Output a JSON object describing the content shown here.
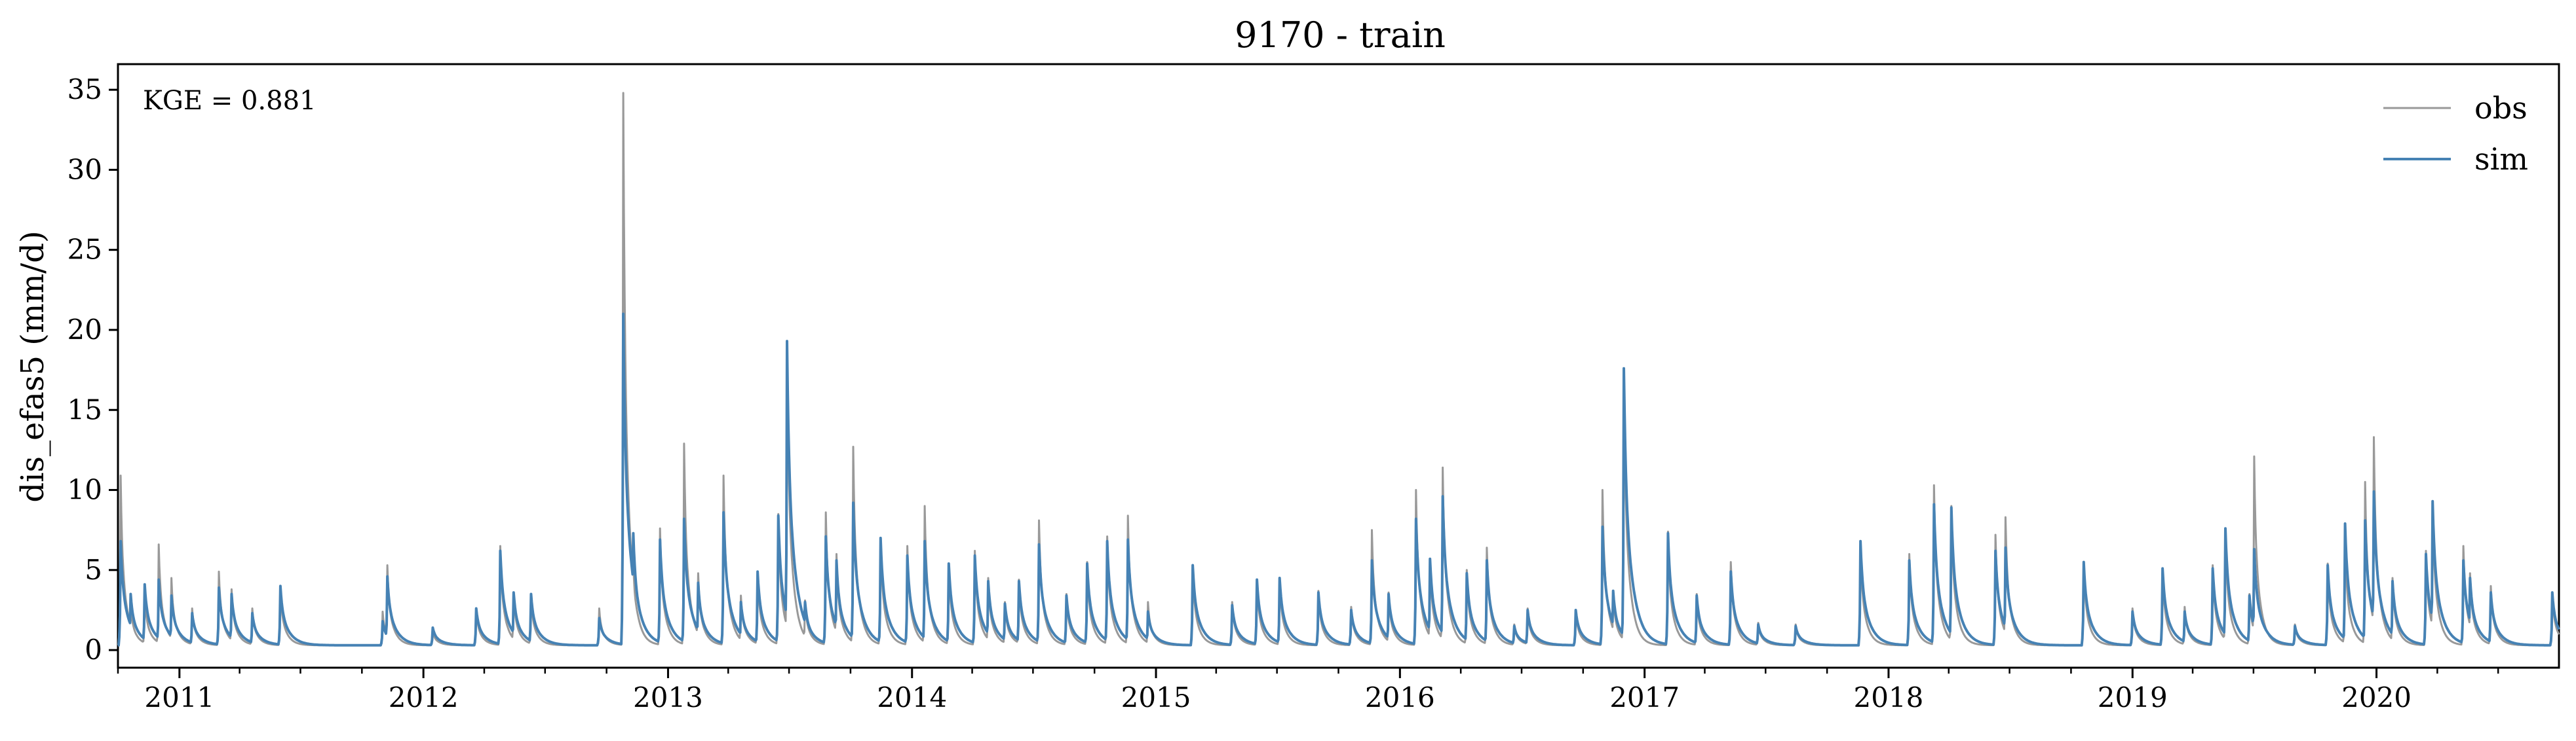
{
  "chart_data": {
    "type": "line",
    "title": "9170 - train",
    "xlabel": "",
    "ylabel": "dis_efas5 (mm/d)",
    "annotation": "KGE = 0.881",
    "legend_position": "top-right",
    "grid": false,
    "xlim": [
      "2010-10-01",
      "2020-09-30"
    ],
    "ylim": [
      -1.1,
      36.6
    ],
    "yticks": [
      0,
      5,
      10,
      15,
      20,
      25,
      30,
      35
    ],
    "xticks": [
      {
        "date": "2011-01-01",
        "label": "2011"
      },
      {
        "date": "2012-01-01",
        "label": "2012"
      },
      {
        "date": "2013-01-01",
        "label": "2013"
      },
      {
        "date": "2014-01-01",
        "label": "2014"
      },
      {
        "date": "2015-01-01",
        "label": "2015"
      },
      {
        "date": "2016-01-01",
        "label": "2016"
      },
      {
        "date": "2017-01-01",
        "label": "2017"
      },
      {
        "date": "2018-01-01",
        "label": "2018"
      },
      {
        "date": "2019-01-01",
        "label": "2019"
      },
      {
        "date": "2020-01-01",
        "label": "2020"
      }
    ],
    "base_flow": 0.3,
    "series": [
      {
        "name": "obs",
        "color": "#999999",
        "peaks": [
          [
            "2010-10-05",
            10.9
          ],
          [
            "2010-10-20",
            3.0
          ],
          [
            "2010-11-10",
            3.5
          ],
          [
            "2010-12-01",
            6.6
          ],
          [
            "2010-12-20",
            4.5
          ],
          [
            "2011-01-20",
            2.6
          ],
          [
            "2011-03-01",
            4.9
          ],
          [
            "2011-03-20",
            3.8
          ],
          [
            "2011-04-20",
            2.6
          ],
          [
            "2011-06-01",
            3.9
          ],
          [
            "2011-11-01",
            2.4
          ],
          [
            "2011-11-08",
            5.3
          ],
          [
            "2012-01-15",
            1.2
          ],
          [
            "2012-03-20",
            2.6
          ],
          [
            "2012-04-25",
            6.5
          ],
          [
            "2012-05-15",
            3.6
          ],
          [
            "2012-06-10",
            3.4
          ],
          [
            "2012-09-20",
            2.6
          ],
          [
            "2012-10-26",
            34.8
          ],
          [
            "2012-11-10",
            5.6
          ],
          [
            "2012-12-20",
            7.6
          ],
          [
            "2013-01-25",
            12.9
          ],
          [
            "2013-02-15",
            4.8
          ],
          [
            "2013-03-25",
            10.9
          ],
          [
            "2013-04-20",
            3.4
          ],
          [
            "2013-05-15",
            4.9
          ],
          [
            "2013-06-15",
            8.5
          ],
          [
            "2013-06-28",
            19.2
          ],
          [
            "2013-07-25",
            3.1
          ],
          [
            "2013-08-25",
            8.6
          ],
          [
            "2013-09-10",
            6.0
          ],
          [
            "2013-10-05",
            12.7
          ],
          [
            "2013-11-15",
            7.0
          ],
          [
            "2013-12-25",
            6.5
          ],
          [
            "2014-01-20",
            9.0
          ],
          [
            "2014-02-25",
            5.4
          ],
          [
            "2014-04-05",
            6.2
          ],
          [
            "2014-04-25",
            4.5
          ],
          [
            "2014-05-20",
            3.0
          ],
          [
            "2014-06-10",
            4.4
          ],
          [
            "2014-07-10",
            8.1
          ],
          [
            "2014-08-20",
            3.5
          ],
          [
            "2014-09-20",
            5.5
          ],
          [
            "2014-10-20",
            7.1
          ],
          [
            "2014-11-20",
            8.4
          ],
          [
            "2014-12-20",
            3.0
          ],
          [
            "2015-02-25",
            5.2
          ],
          [
            "2015-04-25",
            3.0
          ],
          [
            "2015-06-01",
            4.4
          ],
          [
            "2015-07-05",
            4.5
          ],
          [
            "2015-09-01",
            3.7
          ],
          [
            "2015-10-20",
            2.7
          ],
          [
            "2015-11-20",
            7.5
          ],
          [
            "2015-12-15",
            3.6
          ],
          [
            "2016-01-25",
            10.0
          ],
          [
            "2016-02-15",
            5.7
          ],
          [
            "2016-03-05",
            11.4
          ],
          [
            "2016-04-10",
            5.0
          ],
          [
            "2016-05-10",
            6.4
          ],
          [
            "2016-06-20",
            1.6
          ],
          [
            "2016-07-10",
            2.6
          ],
          [
            "2016-09-20",
            2.5
          ],
          [
            "2016-10-30",
            10.0
          ],
          [
            "2016-11-15",
            3.7
          ],
          [
            "2016-12-01",
            17.5
          ],
          [
            "2017-02-05",
            7.4
          ],
          [
            "2017-03-20",
            3.5
          ],
          [
            "2017-05-10",
            5.5
          ],
          [
            "2017-06-20",
            1.7
          ],
          [
            "2017-08-15",
            1.6
          ],
          [
            "2017-11-20",
            6.7
          ],
          [
            "2018-02-01",
            6.0
          ],
          [
            "2018-03-10",
            10.3
          ],
          [
            "2018-04-05",
            9.0
          ],
          [
            "2018-06-10",
            7.2
          ],
          [
            "2018-06-25",
            8.3
          ],
          [
            "2018-10-20",
            5.5
          ],
          [
            "2019-01-01",
            2.6
          ],
          [
            "2019-02-15",
            5.0
          ],
          [
            "2019-03-20",
            2.7
          ],
          [
            "2019-05-01",
            5.3
          ],
          [
            "2019-05-20",
            7.5
          ],
          [
            "2019-06-25",
            3.5
          ],
          [
            "2019-07-02",
            12.1
          ],
          [
            "2019-09-01",
            1.6
          ],
          [
            "2019-10-20",
            5.4
          ],
          [
            "2019-11-15",
            7.0
          ],
          [
            "2019-12-15",
            10.5
          ],
          [
            "2019-12-28",
            13.3
          ],
          [
            "2020-01-25",
            4.5
          ],
          [
            "2020-03-15",
            6.2
          ],
          [
            "2020-03-25",
            9.3
          ],
          [
            "2020-05-10",
            6.5
          ],
          [
            "2020-05-20",
            4.8
          ],
          [
            "2020-06-20",
            4.0
          ],
          [
            "2020-09-20",
            3.6
          ]
        ]
      },
      {
        "name": "sim",
        "color": "#4682b4",
        "peaks": [
          [
            "2010-10-05",
            6.8
          ],
          [
            "2010-10-20",
            3.5
          ],
          [
            "2010-11-10",
            4.1
          ],
          [
            "2010-12-01",
            4.4
          ],
          [
            "2010-12-20",
            3.4
          ],
          [
            "2011-01-20",
            2.3
          ],
          [
            "2011-03-01",
            3.9
          ],
          [
            "2011-03-20",
            3.5
          ],
          [
            "2011-04-20",
            2.3
          ],
          [
            "2011-06-01",
            4.0
          ],
          [
            "2011-11-01",
            1.8
          ],
          [
            "2011-11-08",
            4.6
          ],
          [
            "2012-01-15",
            1.4
          ],
          [
            "2012-03-20",
            2.6
          ],
          [
            "2012-04-25",
            6.2
          ],
          [
            "2012-05-15",
            3.6
          ],
          [
            "2012-06-10",
            3.5
          ],
          [
            "2012-09-20",
            2.0
          ],
          [
            "2012-10-26",
            21.0
          ],
          [
            "2012-11-10",
            7.3
          ],
          [
            "2012-12-20",
            6.9
          ],
          [
            "2013-01-25",
            8.2
          ],
          [
            "2013-02-15",
            4.2
          ],
          [
            "2013-03-25",
            8.6
          ],
          [
            "2013-04-20",
            3.0
          ],
          [
            "2013-05-15",
            4.9
          ],
          [
            "2013-06-15",
            8.4
          ],
          [
            "2013-06-28",
            19.3
          ],
          [
            "2013-07-25",
            3.0
          ],
          [
            "2013-08-25",
            7.1
          ],
          [
            "2013-09-10",
            5.6
          ],
          [
            "2013-10-05",
            9.2
          ],
          [
            "2013-11-15",
            7.0
          ],
          [
            "2013-12-25",
            5.9
          ],
          [
            "2014-01-20",
            6.8
          ],
          [
            "2014-02-25",
            5.4
          ],
          [
            "2014-04-05",
            5.9
          ],
          [
            "2014-04-25",
            4.3
          ],
          [
            "2014-05-20",
            2.9
          ],
          [
            "2014-06-10",
            4.3
          ],
          [
            "2014-07-10",
            6.6
          ],
          [
            "2014-08-20",
            3.4
          ],
          [
            "2014-09-20",
            5.4
          ],
          [
            "2014-10-20",
            6.8
          ],
          [
            "2014-11-20",
            6.9
          ],
          [
            "2014-12-20",
            2.4
          ],
          [
            "2015-02-25",
            5.3
          ],
          [
            "2015-04-25",
            2.8
          ],
          [
            "2015-06-01",
            4.4
          ],
          [
            "2015-07-05",
            4.5
          ],
          [
            "2015-09-01",
            3.6
          ],
          [
            "2015-10-20",
            2.5
          ],
          [
            "2015-11-20",
            5.6
          ],
          [
            "2015-12-15",
            3.5
          ],
          [
            "2016-01-25",
            8.2
          ],
          [
            "2016-02-15",
            5.7
          ],
          [
            "2016-03-05",
            9.6
          ],
          [
            "2016-04-10",
            4.8
          ],
          [
            "2016-05-10",
            5.6
          ],
          [
            "2016-06-20",
            1.5
          ],
          [
            "2016-07-10",
            2.5
          ],
          [
            "2016-09-20",
            2.5
          ],
          [
            "2016-10-30",
            7.7
          ],
          [
            "2016-11-15",
            3.7
          ],
          [
            "2016-12-01",
            17.6
          ],
          [
            "2017-02-05",
            7.3
          ],
          [
            "2017-03-20",
            3.4
          ],
          [
            "2017-05-10",
            4.9
          ],
          [
            "2017-06-20",
            1.6
          ],
          [
            "2017-08-15",
            1.5
          ],
          [
            "2017-11-20",
            6.8
          ],
          [
            "2018-02-01",
            5.6
          ],
          [
            "2018-03-10",
            9.1
          ],
          [
            "2018-04-05",
            8.9
          ],
          [
            "2018-06-10",
            6.2
          ],
          [
            "2018-06-25",
            6.4
          ],
          [
            "2018-10-20",
            5.5
          ],
          [
            "2019-01-01",
            2.4
          ],
          [
            "2019-02-15",
            5.1
          ],
          [
            "2019-03-20",
            2.4
          ],
          [
            "2019-05-01",
            5.1
          ],
          [
            "2019-05-20",
            7.6
          ],
          [
            "2019-06-25",
            3.4
          ],
          [
            "2019-07-02",
            6.3
          ],
          [
            "2019-09-01",
            1.5
          ],
          [
            "2019-10-20",
            5.3
          ],
          [
            "2019-11-15",
            7.9
          ],
          [
            "2019-12-15",
            8.1
          ],
          [
            "2019-12-28",
            9.9
          ],
          [
            "2020-01-25",
            4.3
          ],
          [
            "2020-03-15",
            6.0
          ],
          [
            "2020-03-25",
            9.3
          ],
          [
            "2020-05-10",
            5.6
          ],
          [
            "2020-05-20",
            4.5
          ],
          [
            "2020-06-20",
            3.6
          ],
          [
            "2020-09-20",
            3.6
          ]
        ]
      }
    ]
  }
}
